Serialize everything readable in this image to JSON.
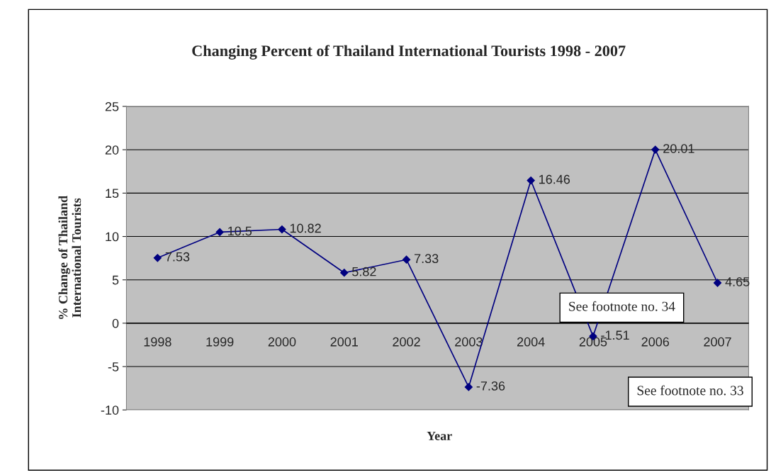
{
  "chart_data": {
    "type": "line",
    "title": "Changing Percent of Thailand International Tourists 1998 - 2007",
    "xlabel": "Year",
    "ylabel": "% Change of Thailand\nInternational Tourists",
    "categories": [
      "1998",
      "1999",
      "2000",
      "2001",
      "2002",
      "2003",
      "2004",
      "2005",
      "2006",
      "2007"
    ],
    "series": [
      {
        "color": "#000080",
        "values": [
          7.53,
          10.5,
          10.82,
          5.82,
          7.33,
          -7.36,
          16.46,
          -1.51,
          20.01,
          4.65
        ]
      }
    ],
    "ylim": [
      -10,
      25
    ],
    "yticks": [
      -10,
      -5,
      0,
      5,
      10,
      15,
      20,
      25
    ],
    "grid": "y",
    "marker": "diamond",
    "line_style": "solid",
    "data_labels": true,
    "annotations": [
      "See footnote no. 34",
      "See footnote no. 33"
    ]
  }
}
